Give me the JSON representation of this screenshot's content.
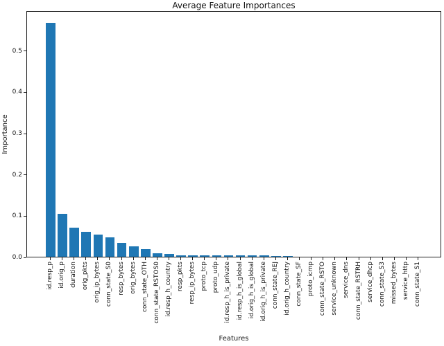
{
  "chart_data": {
    "type": "bar",
    "title": "Average Feature Importances",
    "xlabel": "Features",
    "ylabel": "Importance",
    "bar_color": "#1f77b4",
    "axis_color": "#1a1a1a",
    "grid": false,
    "legend_position": "none",
    "x_tick_rotation": 90,
    "ylim": [
      0,
      0.597
    ],
    "yticks": [
      0.0,
      0.1,
      0.2,
      0.3,
      0.4,
      0.5
    ],
    "categories": [
      "id.resp_p",
      "id.orig_p",
      "duration",
      "orig_pkts",
      "orig_ip_bytes",
      "conn_state_S0",
      "resp_bytes",
      "orig_bytes",
      "conn_state_OTH",
      "conn_state_RSTOS0",
      "id.resp_h_country",
      "resp_pkts",
      "resp_ip_bytes",
      "proto_tcp",
      "proto_udp",
      "id.resp_h_is_private",
      "id.resp_h_is_global",
      "id.orig_h_is_global",
      "id.orig_h_is_private",
      "conn_state_REJ",
      "id.orig_h_country",
      "conn_state_SF",
      "proto_icmp",
      "conn_state_RSTO",
      "service_unknown",
      "service_dns",
      "conn_state_RSTRH",
      "service_dhcp",
      "conn_state_S3",
      "missed_bytes",
      "service_http",
      "conn_state_S1"
    ],
    "values": [
      0.567,
      0.104,
      0.07,
      0.061,
      0.054,
      0.047,
      0.034,
      0.025,
      0.018,
      0.009,
      0.006,
      0.004,
      0.0036,
      0.0034,
      0.0032,
      0.003,
      0.0029,
      0.0028,
      0.0026,
      0.0012,
      0.001,
      0.0008,
      0.0006,
      0.0005,
      0.0004,
      0.0004,
      0.0003,
      0.0003,
      0.0002,
      0.0002,
      0.0001,
      0.0001
    ]
  }
}
